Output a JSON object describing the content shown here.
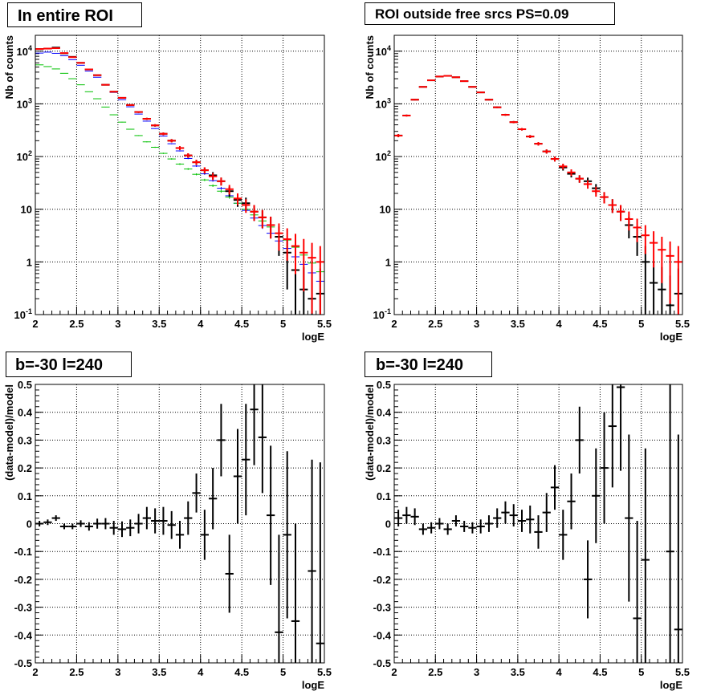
{
  "colors": {
    "data": "#000000",
    "model_total": "#ff0000",
    "model_blue": "#0000ff",
    "model_green": "#00c000"
  },
  "panels": [
    {
      "title": "In entire ROI"
    },
    {
      "title": "ROI outside free srcs PS=0.09"
    },
    {
      "title": "b=-30 l=240"
    },
    {
      "title": "b=-30 l=240"
    }
  ],
  "chart_data": [
    {
      "type": "scatter",
      "title": "In entire ROI",
      "xlabel": "logE",
      "ylabel": "Nb of counts",
      "xlim": [
        2,
        5.5
      ],
      "ylim": [
        0.1,
        20000
      ],
      "yscale": "log",
      "grid": true,
      "xticks": [
        "2",
        "2.5",
        "3",
        "3.5",
        "4",
        "4.5",
        "5",
        "5.5"
      ],
      "yticks": [
        "10^-1",
        "1",
        "10",
        "10^2",
        "10^3",
        "10^4"
      ],
      "bin_width": 0.1,
      "x": [
        2.05,
        2.15,
        2.25,
        2.35,
        2.45,
        2.55,
        2.65,
        2.75,
        2.85,
        2.95,
        3.05,
        3.15,
        3.25,
        3.35,
        3.45,
        3.55,
        3.65,
        3.75,
        3.85,
        3.95,
        4.05,
        4.15,
        4.25,
        4.35,
        4.45,
        4.55,
        4.65,
        4.75,
        4.85,
        4.95,
        5.05,
        5.15,
        5.25,
        5.35,
        5.45
      ],
      "series": [
        {
          "color": "#000000",
          "style": "data_errorbars",
          "values": [
            11000,
            11200,
            11700,
            9100,
            7800,
            6000,
            4500,
            3500,
            2300,
            1700,
            1300,
            950,
            700,
            520,
            390,
            270,
            200,
            145,
            105,
            78,
            55,
            44,
            34,
            22,
            15,
            13,
            9,
            7,
            5,
            3,
            1.5,
            0.7,
            0.3,
            0.2,
            0.25
          ],
          "errors": [
            105,
            106,
            108,
            95,
            88,
            77,
            67,
            59,
            48,
            41,
            36,
            31,
            26,
            23,
            20,
            16,
            14,
            12,
            10,
            9,
            7.4,
            6.6,
            5.8,
            4.7,
            3.9,
            3.6,
            3,
            2.6,
            2.2,
            1.7,
            1.2,
            0.8,
            0.5,
            0.45,
            0.5
          ]
        },
        {
          "color": "#0000ff",
          "style": "model_steps",
          "values": [
            9200,
            9600,
            9100,
            8200,
            6900,
            5400,
            4200,
            3200,
            2300,
            1650,
            1200,
            880,
            640,
            470,
            340,
            245,
            175,
            128,
            92,
            66,
            47,
            35,
            25,
            18,
            13,
            9.5,
            6.8,
            4.9,
            3.5,
            2.5,
            1.8,
            1.25,
            0.9,
            0.62,
            0.43
          ]
        },
        {
          "color": "#00c000",
          "style": "model_steps",
          "values": [
            5500,
            5100,
            4600,
            3800,
            3000,
            2300,
            1700,
            1250,
            870,
            620,
            450,
            330,
            250,
            190,
            150,
            115,
            90,
            72,
            58,
            46,
            36,
            28,
            22,
            17,
            13,
            10,
            7.8,
            6,
            4.6,
            3.5,
            2.6,
            1.9,
            1.35,
            0.95,
            0.65
          ]
        },
        {
          "color": "#ff0000",
          "style": "model_errorbars",
          "values": [
            11000,
            11200,
            11400,
            9200,
            7700,
            6000,
            4500,
            3500,
            2300,
            1700,
            1300,
            950,
            700,
            520,
            390,
            270,
            200,
            145,
            105,
            78,
            55,
            42,
            34,
            24,
            16,
            12,
            9,
            7,
            5,
            3.5,
            2.7,
            2,
            1.5,
            1.2,
            1
          ]
        }
      ]
    },
    {
      "type": "scatter",
      "title": "ROI outside free srcs PS=0.09",
      "xlabel": "logE",
      "ylabel": "Nb of counts",
      "xlim": [
        2,
        5.5
      ],
      "ylim": [
        0.1,
        20000
      ],
      "yscale": "log",
      "grid": true,
      "xticks": [
        "2",
        "2.5",
        "3",
        "3.5",
        "4",
        "4.5",
        "5",
        "5.5"
      ],
      "yticks": [
        "10^-1",
        "1",
        "10",
        "10^2",
        "10^3",
        "10^4"
      ],
      "bin_width": 0.1,
      "x": [
        2.05,
        2.15,
        2.25,
        2.35,
        2.45,
        2.55,
        2.65,
        2.75,
        2.85,
        2.95,
        3.05,
        3.15,
        3.25,
        3.35,
        3.45,
        3.55,
        3.65,
        3.75,
        3.85,
        3.95,
        4.05,
        4.15,
        4.25,
        4.35,
        4.45,
        4.55,
        4.65,
        4.75,
        4.85,
        4.95,
        5.05,
        5.15,
        5.25,
        5.35,
        5.45
      ],
      "series": [
        {
          "color": "#000000",
          "style": "data_errorbars",
          "values": [
            250,
            600,
            1200,
            2100,
            2800,
            3300,
            3400,
            3200,
            2700,
            2100,
            1650,
            1200,
            860,
            620,
            450,
            330,
            240,
            175,
            125,
            90,
            62,
            47,
            38,
            34,
            25,
            17,
            12,
            9,
            5,
            3,
            1,
            0.4,
            0.3,
            0.15,
            0.25
          ],
          "errors": [
            16,
            24,
            35,
            46,
            53,
            57,
            58,
            57,
            52,
            46,
            41,
            35,
            29,
            25,
            21,
            18,
            15,
            13,
            11,
            9.5,
            7.9,
            6.9,
            6.2,
            5.8,
            5,
            4.1,
            3.5,
            3,
            2.2,
            1.7,
            1,
            0.6,
            0.5,
            0.4,
            0.5
          ]
        },
        {
          "color": "#ff0000",
          "style": "model_errorbars",
          "values": [
            250,
            600,
            1200,
            2100,
            2800,
            3300,
            3400,
            3200,
            2700,
            2100,
            1650,
            1200,
            860,
            620,
            450,
            330,
            240,
            175,
            125,
            90,
            65,
            50,
            38,
            30,
            22,
            17,
            12,
            9,
            6.5,
            4.5,
            3.2,
            2.3,
            1.7,
            1.3,
            1
          ]
        }
      ]
    },
    {
      "type": "scatter",
      "title": "b=-30 l=240",
      "xlabel": "logE",
      "ylabel": "(data-model)/model",
      "xlim": [
        2,
        5.5
      ],
      "ylim": [
        -0.5,
        0.5
      ],
      "grid": true,
      "xticks": [
        "2",
        "2.5",
        "3",
        "3.5",
        "4",
        "4.5",
        "5",
        "5.5"
      ],
      "yticks": [
        "-0.5",
        "-0.4",
        "-0.3",
        "-0.2",
        "-0.1",
        "0",
        "0.1",
        "0.2",
        "0.3",
        "0.4",
        "0.5"
      ],
      "bin_width": 0.1,
      "series": [
        {
          "color": "#000000",
          "style": "data_errorbars",
          "x": [
            2.05,
            2.15,
            2.25,
            2.35,
            2.45,
            2.55,
            2.65,
            2.75,
            2.85,
            2.95,
            3.05,
            3.15,
            3.25,
            3.35,
            3.45,
            3.55,
            3.65,
            3.75,
            3.85,
            3.95,
            4.05,
            4.15,
            4.25,
            4.35,
            4.45,
            4.55,
            4.65,
            4.75,
            4.85,
            4.95,
            5.05,
            5.15,
            5.35,
            5.45
          ],
          "values": [
            0.0,
            0.005,
            0.02,
            -0.01,
            -0.01,
            0.0,
            -0.01,
            0.0,
            0.0,
            -0.015,
            -0.02,
            -0.015,
            0.0,
            0.02,
            0.01,
            0.01,
            -0.005,
            -0.04,
            0.02,
            0.11,
            -0.04,
            0.09,
            0.3,
            -0.18,
            0.17,
            0.23,
            0.41,
            0.31,
            0.03,
            -0.39,
            -0.04,
            -0.35,
            -0.17,
            -0.43
          ],
          "errors": [
            0.01,
            0.01,
            0.01,
            0.01,
            0.01,
            0.012,
            0.015,
            0.018,
            0.02,
            0.025,
            0.028,
            0.03,
            0.035,
            0.04,
            0.045,
            0.05,
            0.05,
            0.05,
            0.06,
            0.07,
            0.09,
            0.11,
            0.13,
            0.14,
            0.17,
            0.2,
            0.2,
            0.2,
            0.25,
            0.35,
            0.3,
            0.35,
            0.4,
            0.65
          ]
        }
      ]
    },
    {
      "type": "scatter",
      "title": "b=-30 l=240",
      "xlabel": "logE",
      "ylabel": "(data-model)/model",
      "xlim": [
        2,
        5.5
      ],
      "ylim": [
        -0.5,
        0.5
      ],
      "grid": true,
      "xticks": [
        "2",
        "2.5",
        "3",
        "3.5",
        "4",
        "4.5",
        "5",
        "5.5"
      ],
      "yticks": [
        "-0.5",
        "-0.4",
        "-0.3",
        "-0.2",
        "-0.1",
        "0",
        "0.1",
        "0.2",
        "0.3",
        "0.4",
        "0.5"
      ],
      "bin_width": 0.1,
      "series": [
        {
          "color": "#000000",
          "style": "data_errorbars",
          "x": [
            2.05,
            2.15,
            2.25,
            2.35,
            2.45,
            2.55,
            2.65,
            2.75,
            2.85,
            2.95,
            3.05,
            3.15,
            3.25,
            3.35,
            3.45,
            3.55,
            3.65,
            3.75,
            3.85,
            3.95,
            4.05,
            4.15,
            4.25,
            4.35,
            4.45,
            4.55,
            4.65,
            4.75,
            4.85,
            4.95,
            5.05,
            5.35,
            5.45
          ],
          "values": [
            0.02,
            0.03,
            0.025,
            -0.02,
            -0.015,
            0.0,
            -0.02,
            0.01,
            -0.01,
            -0.015,
            -0.01,
            0.0,
            0.02,
            0.04,
            0.03,
            0.01,
            0.015,
            -0.03,
            0.04,
            0.13,
            -0.04,
            0.08,
            0.3,
            -0.2,
            0.1,
            0.2,
            0.35,
            0.49,
            0.02,
            -0.34,
            -0.13,
            -0.1,
            -0.38
          ],
          "errors": [
            0.03,
            0.03,
            0.03,
            0.02,
            0.02,
            0.02,
            0.02,
            0.02,
            0.02,
            0.02,
            0.025,
            0.03,
            0.035,
            0.04,
            0.04,
            0.04,
            0.05,
            0.06,
            0.07,
            0.08,
            0.09,
            0.1,
            0.12,
            0.14,
            0.17,
            0.2,
            0.22,
            0.3,
            0.3,
            0.35,
            0.4,
            0.6,
            0.7
          ]
        }
      ]
    }
  ]
}
